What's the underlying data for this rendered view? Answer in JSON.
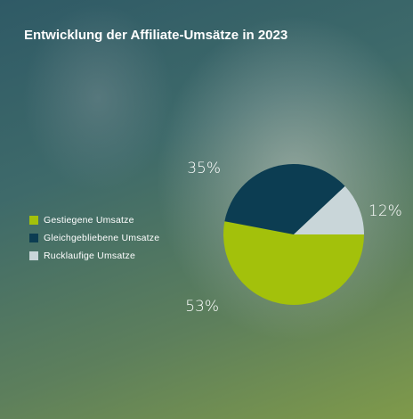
{
  "chart_data": {
    "type": "pie",
    "title": "Entwicklung der Affiliate-Umsätze in 2023",
    "legend_position": "left",
    "slices": [
      {
        "label": "Gestiegene Umsatze",
        "value": 53,
        "display": "53%",
        "color": "#a3c10b"
      },
      {
        "label": "Gleichgebliebene Umsatze",
        "value": 35,
        "display": "35%",
        "color": "#0c3d52"
      },
      {
        "label": "Rucklaufige Umsatze",
        "value": 12,
        "display": "12%",
        "color": "#c9d6d9"
      }
    ]
  }
}
